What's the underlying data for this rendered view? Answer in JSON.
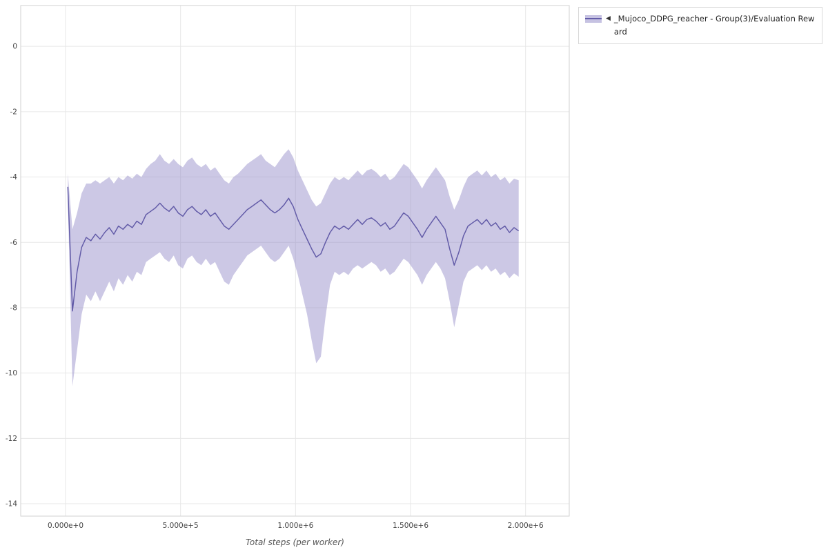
{
  "legend": {
    "collapse_icon": "◀",
    "label": "_Mujoco_DDPG_reacher - Group(3)/Evaluation Reward"
  },
  "colors": {
    "line": "#635ca8",
    "band": "#8d85c6",
    "band_opacity": 0.45,
    "grid": "#e7e7e7",
    "border": "#d2d2d2",
    "tick_text": "#444444",
    "axis_label_text": "#555555",
    "background": "#ffffff"
  },
  "chart_data": {
    "type": "line",
    "title": "",
    "xlabel": "Total steps (per worker)",
    "ylabel": "",
    "grid": true,
    "legend_position": "top-right",
    "xlim": [
      -195000,
      2190000
    ],
    "ylim": [
      -14.38,
      1.25
    ],
    "xticks": [
      0,
      500000,
      1000000,
      1500000,
      2000000
    ],
    "xtick_labels": [
      "0.000e+0",
      "5.000e+5",
      "1.000e+6",
      "1.500e+6",
      "2.000e+6"
    ],
    "yticks": [
      0,
      -2,
      -4,
      -6,
      -8,
      -10,
      -12,
      -14
    ],
    "ytick_labels": [
      "0",
      "-2",
      "-4",
      "-6",
      "-8",
      "-10",
      "-12",
      "-14"
    ],
    "series": [
      {
        "name": "_Mujoco_DDPG_reacher - Group(3)/Evaluation Reward",
        "x": [
          10000,
          30000,
          50000,
          70000,
          90000,
          110000,
          130000,
          150000,
          170000,
          190000,
          210000,
          230000,
          250000,
          270000,
          290000,
          310000,
          330000,
          350000,
          370000,
          390000,
          410000,
          430000,
          450000,
          470000,
          490000,
          510000,
          530000,
          550000,
          570000,
          590000,
          610000,
          630000,
          650000,
          670000,
          690000,
          710000,
          730000,
          750000,
          770000,
          790000,
          810000,
          830000,
          850000,
          870000,
          890000,
          910000,
          930000,
          950000,
          970000,
          990000,
          1010000,
          1030000,
          1050000,
          1070000,
          1090000,
          1110000,
          1130000,
          1150000,
          1170000,
          1190000,
          1210000,
          1230000,
          1250000,
          1270000,
          1290000,
          1310000,
          1330000,
          1350000,
          1370000,
          1390000,
          1410000,
          1430000,
          1450000,
          1470000,
          1490000,
          1510000,
          1530000,
          1550000,
          1570000,
          1590000,
          1610000,
          1630000,
          1650000,
          1670000,
          1690000,
          1710000,
          1730000,
          1750000,
          1770000,
          1790000,
          1810000,
          1830000,
          1850000,
          1870000,
          1890000,
          1910000,
          1930000,
          1950000,
          1970000
        ],
        "mean": [
          -4.3,
          -8.1,
          -6.9,
          -6.15,
          -5.85,
          -5.95,
          -5.75,
          -5.9,
          -5.7,
          -5.55,
          -5.75,
          -5.5,
          -5.6,
          -5.45,
          -5.55,
          -5.35,
          -5.45,
          -5.15,
          -5.05,
          -4.95,
          -4.8,
          -4.95,
          -5.05,
          -4.9,
          -5.1,
          -5.2,
          -5.0,
          -4.9,
          -5.05,
          -5.15,
          -5.0,
          -5.2,
          -5.1,
          -5.3,
          -5.5,
          -5.6,
          -5.45,
          -5.3,
          -5.15,
          -5.0,
          -4.9,
          -4.8,
          -4.7,
          -4.85,
          -5.0,
          -5.1,
          -5.0,
          -4.85,
          -4.65,
          -4.9,
          -5.3,
          -5.6,
          -5.9,
          -6.2,
          -6.45,
          -6.35,
          -6.0,
          -5.7,
          -5.5,
          -5.6,
          -5.5,
          -5.6,
          -5.45,
          -5.3,
          -5.45,
          -5.3,
          -5.25,
          -5.35,
          -5.5,
          -5.4,
          -5.6,
          -5.5,
          -5.3,
          -5.1,
          -5.2,
          -5.4,
          -5.6,
          -5.85,
          -5.6,
          -5.4,
          -5.2,
          -5.4,
          -5.6,
          -6.2,
          -6.7,
          -6.3,
          -5.8,
          -5.5,
          -5.4,
          -5.3,
          -5.45,
          -5.3,
          -5.5,
          -5.4,
          -5.6,
          -5.5,
          -5.7,
          -5.55,
          -5.65
        ],
        "upper": [
          -3.9,
          -5.6,
          -5.1,
          -4.5,
          -4.2,
          -4.2,
          -4.1,
          -4.2,
          -4.1,
          -4.0,
          -4.2,
          -4.0,
          -4.1,
          -3.95,
          -4.05,
          -3.9,
          -4.0,
          -3.75,
          -3.6,
          -3.5,
          -3.3,
          -3.5,
          -3.6,
          -3.45,
          -3.6,
          -3.7,
          -3.5,
          -3.4,
          -3.6,
          -3.7,
          -3.6,
          -3.8,
          -3.7,
          -3.9,
          -4.1,
          -4.2,
          -4.0,
          -3.9,
          -3.75,
          -3.6,
          -3.5,
          -3.4,
          -3.3,
          -3.5,
          -3.6,
          -3.7,
          -3.5,
          -3.3,
          -3.15,
          -3.4,
          -3.8,
          -4.1,
          -4.4,
          -4.7,
          -4.9,
          -4.8,
          -4.5,
          -4.2,
          -4.0,
          -4.1,
          -4.0,
          -4.1,
          -3.95,
          -3.8,
          -3.95,
          -3.8,
          -3.75,
          -3.85,
          -4.0,
          -3.9,
          -4.1,
          -4.0,
          -3.8,
          -3.6,
          -3.7,
          -3.9,
          -4.1,
          -4.35,
          -4.1,
          -3.9,
          -3.7,
          -3.9,
          -4.1,
          -4.6,
          -5.0,
          -4.7,
          -4.3,
          -4.0,
          -3.9,
          -3.8,
          -3.95,
          -3.8,
          -4.0,
          -3.9,
          -4.1,
          -4.0,
          -4.2,
          -4.05,
          -4.1
        ],
        "lower": [
          -4.7,
          -10.4,
          -9.3,
          -8.2,
          -7.6,
          -7.8,
          -7.5,
          -7.8,
          -7.5,
          -7.2,
          -7.5,
          -7.1,
          -7.3,
          -7.0,
          -7.2,
          -6.9,
          -7.0,
          -6.6,
          -6.5,
          -6.4,
          -6.3,
          -6.5,
          -6.6,
          -6.4,
          -6.7,
          -6.8,
          -6.5,
          -6.4,
          -6.6,
          -6.7,
          -6.5,
          -6.7,
          -6.6,
          -6.9,
          -7.2,
          -7.3,
          -7.0,
          -6.8,
          -6.6,
          -6.4,
          -6.3,
          -6.2,
          -6.1,
          -6.3,
          -6.5,
          -6.6,
          -6.5,
          -6.3,
          -6.1,
          -6.5,
          -7.0,
          -7.6,
          -8.2,
          -9.0,
          -9.7,
          -9.5,
          -8.3,
          -7.3,
          -6.9,
          -7.0,
          -6.9,
          -7.0,
          -6.8,
          -6.7,
          -6.8,
          -6.7,
          -6.6,
          -6.7,
          -6.9,
          -6.8,
          -7.0,
          -6.9,
          -6.7,
          -6.5,
          -6.6,
          -6.8,
          -7.0,
          -7.3,
          -7.0,
          -6.8,
          -6.6,
          -6.8,
          -7.1,
          -7.8,
          -8.6,
          -7.9,
          -7.2,
          -6.9,
          -6.8,
          -6.7,
          -6.85,
          -6.7,
          -6.9,
          -6.8,
          -7.0,
          -6.9,
          -7.1,
          -6.95,
          -7.05
        ]
      }
    ]
  }
}
